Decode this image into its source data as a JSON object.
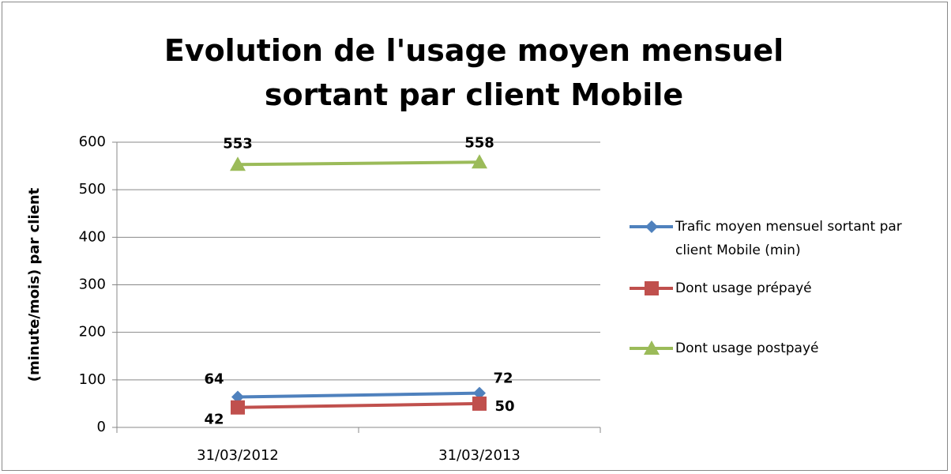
{
  "chart_data": {
    "type": "line",
    "title": "Evolution de l'usage moyen mensuel sortant par client Mobile",
    "y_label": "(minute/mois) par client",
    "categories": [
      "31/03/2012",
      "31/03/2013"
    ],
    "series": [
      {
        "name": "Trafic moyen mensuel sortant par client Mobile (min)",
        "color": "#4f81bd",
        "marker": "diamond",
        "values": [
          64,
          72
        ]
      },
      {
        "name": "Dont usage prépayé",
        "color": "#c0504d",
        "marker": "square",
        "values": [
          42,
          50
        ]
      },
      {
        "name": "Dont usage postpayé",
        "color": "#9bbb59",
        "marker": "triangle",
        "values": [
          553,
          558
        ]
      }
    ],
    "ylim": [
      0,
      600
    ],
    "yticks": [
      0,
      100,
      200,
      300,
      400,
      500,
      600
    ],
    "grid": true,
    "legend": "right"
  }
}
